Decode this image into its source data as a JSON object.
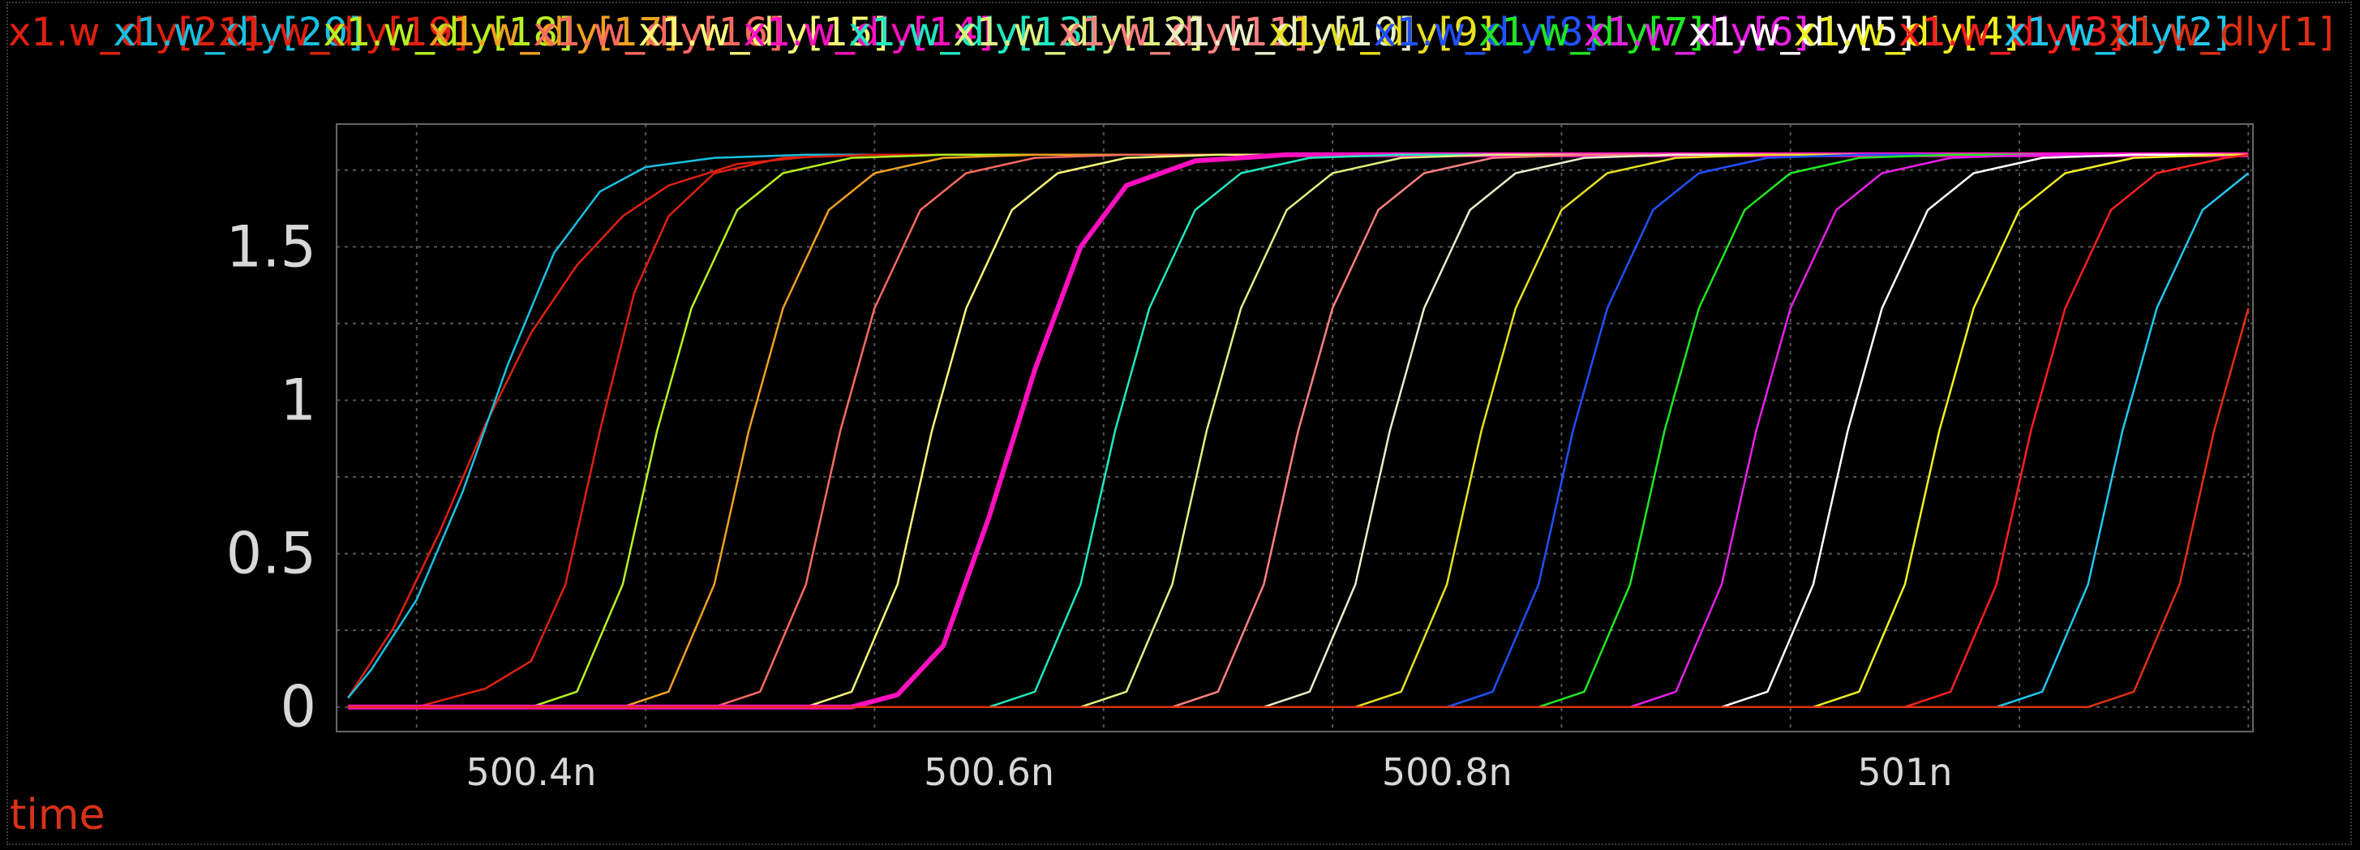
{
  "chart_data": {
    "type": "line",
    "xlabel": "time",
    "xlabel_color": "#d83218",
    "grid": true,
    "background": "#000000",
    "xlim": [
      500.315,
      501.152
    ],
    "ylim": [
      -0.08,
      1.9
    ],
    "x_ticks": [
      {
        "value": 500.4,
        "label": "500.4n"
      },
      {
        "value": 500.6,
        "label": "500.6n"
      },
      {
        "value": 500.8,
        "label": "500.8n"
      },
      {
        "value": 501.0,
        "label": "501n"
      }
    ],
    "y_ticks": [
      {
        "value": 0,
        "label": "0"
      },
      {
        "value": 0.5,
        "label": "0.5"
      },
      {
        "value": 1,
        "label": "1"
      },
      {
        "value": 1.5,
        "label": "1.5"
      }
    ],
    "legend_position": "top",
    "series": [
      {
        "name": "x1.w_dly[21]",
        "color": "#e02010",
        "values": [
          [
            500.32,
            0.03
          ],
          [
            500.34,
            0.26
          ],
          [
            500.36,
            0.57
          ],
          [
            500.38,
            0.92
          ],
          [
            500.4,
            1.22
          ],
          [
            500.42,
            1.44
          ],
          [
            500.44,
            1.6
          ],
          [
            500.46,
            1.7
          ],
          [
            500.49,
            1.77
          ],
          [
            500.53,
            1.8
          ],
          [
            501.15,
            1.8
          ]
        ]
      },
      {
        "name": "x1.w_dly[20]",
        "color": "#18c0e0",
        "values": [
          [
            500.32,
            0.03
          ],
          [
            500.33,
            0.12
          ],
          [
            500.35,
            0.35
          ],
          [
            500.37,
            0.7
          ],
          [
            500.39,
            1.12
          ],
          [
            500.41,
            1.48
          ],
          [
            500.43,
            1.68
          ],
          [
            500.45,
            1.76
          ],
          [
            500.48,
            1.79
          ],
          [
            500.52,
            1.8
          ],
          [
            501.15,
            1.8
          ]
        ]
      },
      {
        "name": "x1.w_dly[19]",
        "color": "#e02010",
        "values": [
          [
            500.32,
            0.0
          ],
          [
            500.35,
            0.0
          ],
          [
            500.38,
            0.06
          ],
          [
            500.4,
            0.15
          ],
          [
            500.415,
            0.4
          ],
          [
            500.43,
            0.9
          ],
          [
            500.445,
            1.35
          ],
          [
            500.46,
            1.6
          ],
          [
            500.48,
            1.74
          ],
          [
            500.51,
            1.79
          ],
          [
            500.55,
            1.8
          ],
          [
            501.15,
            1.8
          ]
        ]
      },
      {
        "name": "x1.w_dly[18]",
        "color": "#b8f020",
        "values": [
          [
            500.32,
            0.0
          ],
          [
            500.4,
            0.0
          ],
          [
            500.42,
            0.05
          ],
          [
            500.44,
            0.4
          ],
          [
            500.455,
            0.9
          ],
          [
            500.47,
            1.3
          ],
          [
            500.49,
            1.62
          ],
          [
            500.51,
            1.74
          ],
          [
            500.54,
            1.79
          ],
          [
            500.58,
            1.8
          ],
          [
            501.15,
            1.8
          ]
        ]
      },
      {
        "name": "x1.w_dly[17]",
        "color": "#f0a020",
        "values": [
          [
            500.32,
            0.0
          ],
          [
            500.44,
            0.0
          ],
          [
            500.46,
            0.05
          ],
          [
            500.48,
            0.4
          ],
          [
            500.495,
            0.9
          ],
          [
            500.51,
            1.3
          ],
          [
            500.53,
            1.62
          ],
          [
            500.55,
            1.74
          ],
          [
            500.58,
            1.79
          ],
          [
            500.62,
            1.8
          ],
          [
            501.15,
            1.8
          ]
        ]
      },
      {
        "name": "x1.w_dly[16]",
        "color": "#ff6a60",
        "values": [
          [
            500.32,
            0.0
          ],
          [
            500.48,
            0.0
          ],
          [
            500.5,
            0.05
          ],
          [
            500.52,
            0.4
          ],
          [
            500.535,
            0.9
          ],
          [
            500.55,
            1.3
          ],
          [
            500.57,
            1.62
          ],
          [
            500.59,
            1.74
          ],
          [
            500.62,
            1.79
          ],
          [
            500.66,
            1.8
          ],
          [
            501.15,
            1.8
          ]
        ]
      },
      {
        "name": "x1.w_dly[15]",
        "color": "#f8f878",
        "values": [
          [
            500.32,
            0.0
          ],
          [
            500.52,
            0.0
          ],
          [
            500.54,
            0.05
          ],
          [
            500.56,
            0.4
          ],
          [
            500.575,
            0.9
          ],
          [
            500.59,
            1.3
          ],
          [
            500.61,
            1.62
          ],
          [
            500.63,
            1.74
          ],
          [
            500.66,
            1.79
          ],
          [
            500.7,
            1.8
          ],
          [
            501.15,
            1.8
          ]
        ]
      },
      {
        "name": "x1.w_dly[14]",
        "color": "#ff10c0",
        "bold": true,
        "values": [
          [
            500.32,
            0.0
          ],
          [
            500.54,
            0.0
          ],
          [
            500.56,
            0.04
          ],
          [
            500.58,
            0.2
          ],
          [
            500.6,
            0.62
          ],
          [
            500.62,
            1.1
          ],
          [
            500.64,
            1.5
          ],
          [
            500.66,
            1.7
          ],
          [
            500.69,
            1.78
          ],
          [
            500.73,
            1.8
          ],
          [
            501.15,
            1.8
          ]
        ]
      },
      {
        "name": "x1.w_dly[13]",
        "color": "#20e8c0",
        "values": [
          [
            500.32,
            0.0
          ],
          [
            500.6,
            0.0
          ],
          [
            500.62,
            0.05
          ],
          [
            500.64,
            0.4
          ],
          [
            500.655,
            0.9
          ],
          [
            500.67,
            1.3
          ],
          [
            500.69,
            1.62
          ],
          [
            500.71,
            1.74
          ],
          [
            500.74,
            1.79
          ],
          [
            500.78,
            1.8
          ],
          [
            501.15,
            1.8
          ]
        ]
      },
      {
        "name": "x1.w_dly[12]",
        "color": "#e0f080",
        "values": [
          [
            500.32,
            0.0
          ],
          [
            500.64,
            0.0
          ],
          [
            500.66,
            0.05
          ],
          [
            500.68,
            0.4
          ],
          [
            500.695,
            0.9
          ],
          [
            500.71,
            1.3
          ],
          [
            500.73,
            1.62
          ],
          [
            500.75,
            1.74
          ],
          [
            500.78,
            1.79
          ],
          [
            500.82,
            1.8
          ],
          [
            501.15,
            1.8
          ]
        ]
      },
      {
        "name": "x1.w_dly[11]",
        "color": "#ff8080",
        "values": [
          [
            500.32,
            0.0
          ],
          [
            500.68,
            0.0
          ],
          [
            500.7,
            0.05
          ],
          [
            500.72,
            0.4
          ],
          [
            500.735,
            0.9
          ],
          [
            500.75,
            1.3
          ],
          [
            500.77,
            1.62
          ],
          [
            500.79,
            1.74
          ],
          [
            500.82,
            1.79
          ],
          [
            500.86,
            1.8
          ],
          [
            501.15,
            1.8
          ]
        ]
      },
      {
        "name": "x1.w_dly[10]",
        "color": "#e8f0c8",
        "values": [
          [
            500.32,
            0.0
          ],
          [
            500.72,
            0.0
          ],
          [
            500.74,
            0.05
          ],
          [
            500.76,
            0.4
          ],
          [
            500.775,
            0.9
          ],
          [
            500.79,
            1.3
          ],
          [
            500.81,
            1.62
          ],
          [
            500.83,
            1.74
          ],
          [
            500.86,
            1.79
          ],
          [
            500.9,
            1.8
          ],
          [
            501.15,
            1.8
          ]
        ]
      },
      {
        "name": "x1.w_dly[9]",
        "color": "#e8e020",
        "values": [
          [
            500.32,
            0.0
          ],
          [
            500.76,
            0.0
          ],
          [
            500.78,
            0.05
          ],
          [
            500.8,
            0.4
          ],
          [
            500.815,
            0.9
          ],
          [
            500.83,
            1.3
          ],
          [
            500.85,
            1.62
          ],
          [
            500.87,
            1.74
          ],
          [
            500.9,
            1.79
          ],
          [
            500.94,
            1.8
          ],
          [
            501.15,
            1.8
          ]
        ]
      },
      {
        "name": "x1.w_dly[8]",
        "color": "#2050ff",
        "values": [
          [
            500.32,
            0.0
          ],
          [
            500.8,
            0.0
          ],
          [
            500.82,
            0.05
          ],
          [
            500.84,
            0.4
          ],
          [
            500.855,
            0.9
          ],
          [
            500.87,
            1.3
          ],
          [
            500.89,
            1.62
          ],
          [
            500.91,
            1.74
          ],
          [
            500.94,
            1.79
          ],
          [
            500.98,
            1.8
          ],
          [
            501.15,
            1.8
          ]
        ]
      },
      {
        "name": "x1.w_dly[7]",
        "color": "#20e820",
        "values": [
          [
            500.32,
            0.0
          ],
          [
            500.84,
            0.0
          ],
          [
            500.86,
            0.05
          ],
          [
            500.88,
            0.4
          ],
          [
            500.895,
            0.9
          ],
          [
            500.91,
            1.3
          ],
          [
            500.93,
            1.62
          ],
          [
            500.95,
            1.74
          ],
          [
            500.98,
            1.79
          ],
          [
            501.02,
            1.8
          ],
          [
            501.15,
            1.8
          ]
        ]
      },
      {
        "name": "x1.w_dly[6]",
        "color": "#e820e8",
        "values": [
          [
            500.32,
            0.0
          ],
          [
            500.88,
            0.0
          ],
          [
            500.9,
            0.05
          ],
          [
            500.92,
            0.4
          ],
          [
            500.935,
            0.9
          ],
          [
            500.95,
            1.3
          ],
          [
            500.97,
            1.62
          ],
          [
            500.99,
            1.74
          ],
          [
            501.02,
            1.79
          ],
          [
            501.06,
            1.8
          ],
          [
            501.15,
            1.8
          ]
        ]
      },
      {
        "name": "x1.w_dly[5]",
        "color": "#ffffff",
        "values": [
          [
            500.32,
            0.0
          ],
          [
            500.92,
            0.0
          ],
          [
            500.94,
            0.05
          ],
          [
            500.96,
            0.4
          ],
          [
            500.975,
            0.9
          ],
          [
            500.99,
            1.3
          ],
          [
            501.01,
            1.62
          ],
          [
            501.03,
            1.74
          ],
          [
            501.06,
            1.79
          ],
          [
            501.1,
            1.8
          ],
          [
            501.15,
            1.8
          ]
        ]
      },
      {
        "name": "x1.w_dly[4]",
        "color": "#f0f020",
        "values": [
          [
            500.32,
            0.0
          ],
          [
            500.96,
            0.0
          ],
          [
            500.98,
            0.05
          ],
          [
            501.0,
            0.4
          ],
          [
            501.015,
            0.9
          ],
          [
            501.03,
            1.3
          ],
          [
            501.05,
            1.62
          ],
          [
            501.07,
            1.74
          ],
          [
            501.1,
            1.79
          ],
          [
            501.14,
            1.8
          ],
          [
            501.15,
            1.8
          ]
        ]
      },
      {
        "name": "x1.w_dly[3]",
        "color": "#ff2020",
        "values": [
          [
            500.32,
            0.0
          ],
          [
            501.0,
            0.0
          ],
          [
            501.02,
            0.05
          ],
          [
            501.04,
            0.4
          ],
          [
            501.055,
            0.9
          ],
          [
            501.07,
            1.3
          ],
          [
            501.09,
            1.62
          ],
          [
            501.11,
            1.74
          ],
          [
            501.14,
            1.79
          ],
          [
            501.15,
            1.8
          ]
        ]
      },
      {
        "name": "x1.w_dly[2]",
        "color": "#20c8f0",
        "values": [
          [
            500.32,
            0.0
          ],
          [
            501.04,
            0.0
          ],
          [
            501.06,
            0.05
          ],
          [
            501.08,
            0.4
          ],
          [
            501.095,
            0.9
          ],
          [
            501.11,
            1.3
          ],
          [
            501.13,
            1.62
          ],
          [
            501.15,
            1.74
          ]
        ]
      },
      {
        "name": "x1.w_dly[1]",
        "color": "#e03010",
        "values": [
          [
            500.32,
            0.0
          ],
          [
            501.08,
            0.0
          ],
          [
            501.1,
            0.05
          ],
          [
            501.12,
            0.4
          ],
          [
            501.135,
            0.9
          ],
          [
            501.15,
            1.3
          ]
        ]
      }
    ]
  }
}
